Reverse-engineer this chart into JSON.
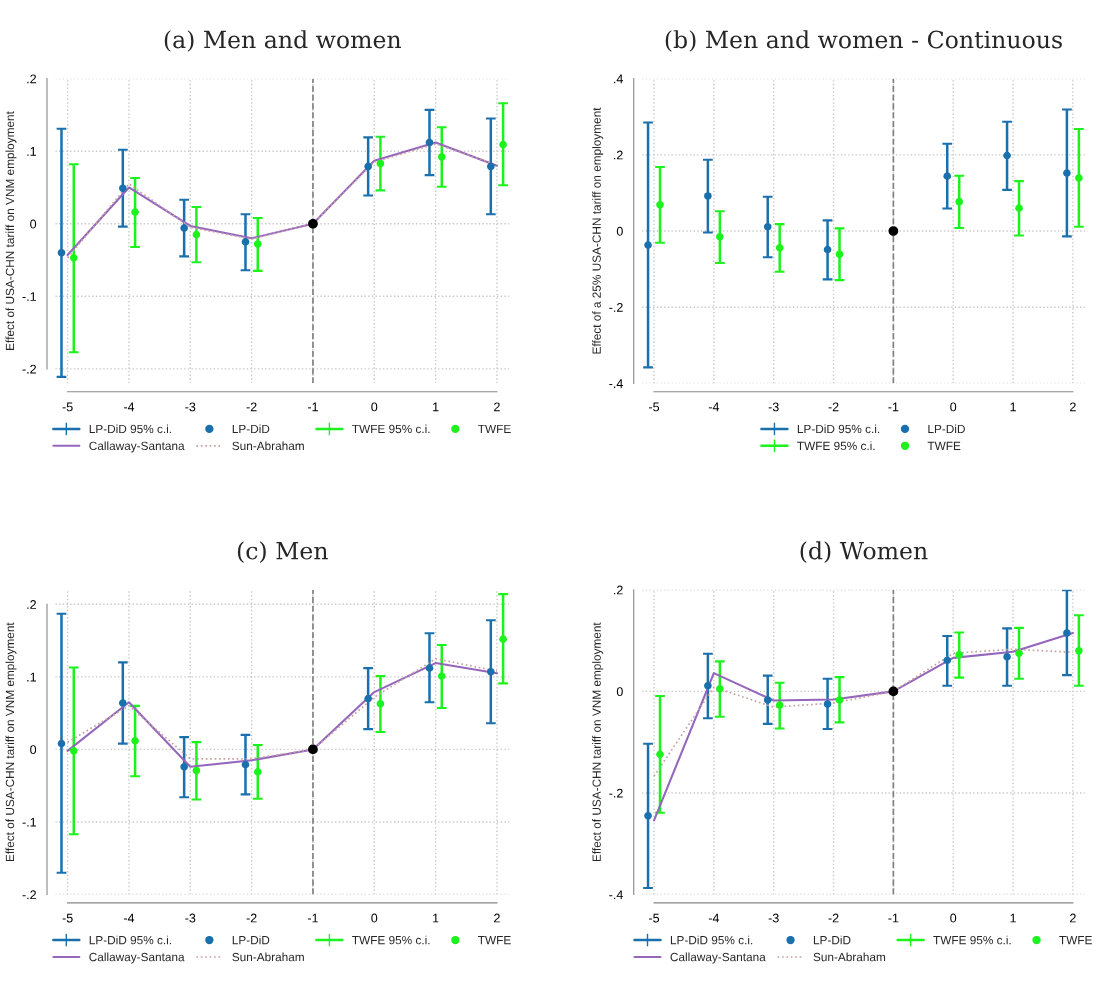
{
  "chart_data": [
    {
      "type": "scatter",
      "title": "(a) Men and women",
      "ylabel": "Effect of USA-CHN tariff on VNM employment",
      "xlim": [
        -5.2,
        2.2
      ],
      "xticks": [
        -5,
        -4,
        -3,
        -2,
        -1,
        0,
        1,
        2
      ],
      "ylim": [
        -0.22,
        0.2
      ],
      "yticks": [
        {
          "value": -0.2,
          "label": "-.2"
        },
        {
          "value": -0.1,
          "label": "-.1"
        },
        0,
        {
          "value": 0.1,
          "label": ".1"
        },
        {
          "value": 0.2,
          "label": ".2"
        }
      ],
      "grid": true,
      "legend": "bottom",
      "ref_lines": [
        {
          "axis": "x",
          "value": -1,
          "color": "#808080",
          "line_style": "dashed"
        }
      ],
      "annotations": [
        "LP-DiD 95% c.i.",
        "TWFE 95% c.i."
      ],
      "series": [
        {
          "name": "LP-DiD",
          "color": "#1a6fad",
          "marker": "circle",
          "x": [
            -5.1,
            -4.1,
            -3.1,
            -2.1,
            -0.1,
            0.9,
            1.9
          ],
          "values": [
            -0.04,
            0.049,
            -0.006,
            -0.025,
            0.079,
            0.112,
            0.079
          ],
          "errors": [
            [
              -0.211,
              0.131
            ],
            [
              -0.004,
              0.102
            ],
            [
              -0.045,
              0.033
            ],
            [
              -0.064,
              0.013
            ],
            [
              0.039,
              0.119
            ],
            [
              0.067,
              0.157
            ],
            [
              0.013,
              0.145
            ]
          ]
        },
        {
          "name": "TWFE",
          "color": "#1cf21c",
          "marker": "circle",
          "x": [
            -4.9,
            -3.9,
            -2.9,
            -1.9,
            0.1,
            1.1,
            2.1
          ],
          "values": [
            -0.047,
            0.016,
            -0.015,
            -0.028,
            0.083,
            0.092,
            0.109
          ],
          "errors": [
            [
              -0.177,
              0.082
            ],
            [
              -0.032,
              0.063
            ],
            [
              -0.053,
              0.023
            ],
            [
              -0.065,
              0.008
            ],
            [
              0.046,
              0.12
            ],
            [
              0.051,
              0.133
            ],
            [
              0.053,
              0.166
            ]
          ]
        },
        {
          "name": "Callaway-Santana",
          "type": "line",
          "color": "#9467bd",
          "line_style": "solid",
          "x": [
            -5,
            -4,
            -3,
            -2,
            -1,
            0,
            1,
            2
          ],
          "values": [
            -0.043,
            0.05,
            -0.003,
            -0.02,
            0,
            0.087,
            0.112,
            0.08
          ]
        },
        {
          "name": "Sun-Abraham",
          "type": "line",
          "color": "#c9a0a0",
          "line_style": "dotted",
          "x": [
            -5,
            -4,
            -3,
            -2,
            -1,
            0,
            1,
            2
          ],
          "values": [
            -0.047,
            0.055,
            -0.005,
            -0.021,
            0,
            0.085,
            0.11,
            0.081
          ]
        },
        {
          "color": "#000000",
          "marker": "circle",
          "x": [
            -1
          ],
          "values": [
            0
          ]
        }
      ]
    },
    {
      "type": "scatter",
      "title": "(b) Men and women - Continuous",
      "ylabel": "Effect of a 25% USA-CHN tariff on employment",
      "xlim": [
        -5.2,
        2.2
      ],
      "xticks": [
        -5,
        -4,
        -3,
        -2,
        -1,
        0,
        1,
        2
      ],
      "ylim": [
        -0.4,
        0.4
      ],
      "yticks": [
        {
          "value": -0.4,
          "label": "-.4"
        },
        {
          "value": -0.2,
          "label": "-.2"
        },
        0,
        {
          "value": 0.2,
          "label": ".2"
        },
        {
          "value": 0.4,
          "label": ".4"
        }
      ],
      "grid": true,
      "legend": "bottom",
      "ref_lines": [
        {
          "axis": "x",
          "value": -1,
          "color": "#808080",
          "line_style": "dashed"
        }
      ],
      "annotations": [
        "LP-DiD 95% c.i.",
        "TWFE 95% c.i."
      ],
      "series": [
        {
          "name": "LP-DiD",
          "color": "#1a6fad",
          "marker": "circle",
          "x": [
            -5.1,
            -4.1,
            -3.1,
            -2.1,
            -0.1,
            0.9,
            1.9
          ],
          "values": [
            -0.037,
            0.092,
            0.011,
            -0.049,
            0.144,
            0.198,
            0.152
          ],
          "errors": [
            [
              -0.358,
              0.285
            ],
            [
              -0.004,
              0.187
            ],
            [
              -0.069,
              0.09
            ],
            [
              -0.127,
              0.028
            ],
            [
              0.059,
              0.229
            ],
            [
              0.108,
              0.287
            ],
            [
              -0.014,
              0.319
            ]
          ]
        },
        {
          "name": "TWFE",
          "color": "#1cf21c",
          "marker": "circle",
          "x": [
            -4.9,
            -3.9,
            -2.9,
            -1.9,
            0.1,
            1.1,
            2.1
          ],
          "values": [
            0.069,
            -0.015,
            -0.044,
            -0.061,
            0.077,
            0.06,
            0.139
          ],
          "errors": [
            [
              -0.031,
              0.168
            ],
            [
              -0.084,
              0.052
            ],
            [
              -0.107,
              0.018
            ],
            [
              -0.129,
              0.007
            ],
            [
              0.008,
              0.145
            ],
            [
              -0.012,
              0.131
            ],
            [
              0.011,
              0.268
            ]
          ]
        },
        {
          "color": "#000000",
          "marker": "circle",
          "x": [
            -1
          ],
          "values": [
            0
          ]
        }
      ]
    },
    {
      "type": "scatter",
      "title": "(c) Men",
      "ylabel": "Effect of USA-CHN tariff on VNM employment",
      "xlim": [
        -5.2,
        2.2
      ],
      "xticks": [
        -5,
        -4,
        -3,
        -2,
        -1,
        0,
        1,
        2
      ],
      "ylim": [
        -0.2,
        0.22
      ],
      "yticks": [
        {
          "value": -0.2,
          "label": "-.2"
        },
        {
          "value": -0.1,
          "label": "-.1"
        },
        0,
        {
          "value": 0.1,
          "label": ".1"
        },
        {
          "value": 0.2,
          "label": ".2"
        }
      ],
      "grid": true,
      "legend": "bottom",
      "ref_lines": [
        {
          "axis": "x",
          "value": -1,
          "color": "#808080",
          "line_style": "dashed"
        }
      ],
      "annotations": [
        "LP-DiD 95% c.i.",
        "TWFE 95% c.i."
      ],
      "series": [
        {
          "name": "LP-DiD",
          "color": "#1a6fad",
          "marker": "circle",
          "x": [
            -5.1,
            -4.1,
            -3.1,
            -2.1,
            -0.1,
            0.9,
            1.9
          ],
          "values": [
            0.008,
            0.064,
            -0.024,
            -0.021,
            0.07,
            0.112,
            0.107
          ],
          "errors": [
            [
              -0.17,
              0.187
            ],
            [
              0.008,
              0.12
            ],
            [
              -0.066,
              0.017
            ],
            [
              -0.062,
              0.02
            ],
            [
              0.028,
              0.112
            ],
            [
              0.065,
              0.16
            ],
            [
              0.036,
              0.178
            ]
          ]
        },
        {
          "name": "TWFE",
          "color": "#1cf21c",
          "marker": "circle",
          "x": [
            -4.9,
            -3.9,
            -2.9,
            -1.9,
            0.1,
            1.1,
            2.1
          ],
          "values": [
            -0.002,
            0.012,
            -0.029,
            -0.031,
            0.063,
            0.101,
            0.152
          ],
          "errors": [
            [
              -0.117,
              0.113
            ],
            [
              -0.037,
              0.06
            ],
            [
              -0.069,
              0.01
            ],
            [
              -0.068,
              0.006
            ],
            [
              0.024,
              0.101
            ],
            [
              0.057,
              0.144
            ],
            [
              0.091,
              0.214
            ]
          ]
        },
        {
          "name": "Callaway-Santana",
          "type": "line",
          "color": "#9467bd",
          "line_style": "solid",
          "x": [
            -5,
            -4,
            -3,
            -2,
            -1,
            0,
            1,
            2
          ],
          "values": [
            -0.002,
            0.065,
            -0.024,
            -0.015,
            0,
            0.079,
            0.119,
            0.105
          ]
        },
        {
          "name": "Sun-Abraham",
          "type": "line",
          "color": "#c9a0a0",
          "line_style": "dotted",
          "x": [
            -5,
            -4,
            -3,
            -2,
            -1,
            0,
            1,
            2
          ],
          "values": [
            0.01,
            0.06,
            -0.013,
            -0.013,
            0,
            0.072,
            0.125,
            0.108
          ]
        },
        {
          "color": "#000000",
          "marker": "circle",
          "x": [
            -1
          ],
          "values": [
            0
          ]
        }
      ]
    },
    {
      "type": "scatter",
      "title": "(d) Women",
      "ylabel": "Effect of USA-CHN tariff on VNM employment",
      "xlim": [
        -5.2,
        2.2
      ],
      "xticks": [
        -5,
        -4,
        -3,
        -2,
        -1,
        0,
        1,
        2
      ],
      "ylim": [
        -0.4,
        0.2
      ],
      "yticks": [
        {
          "value": -0.4,
          "label": "-.4"
        },
        {
          "value": -0.2,
          "label": "-.2"
        },
        0,
        {
          "value": 0.2,
          "label": ".2"
        }
      ],
      "grid": true,
      "legend": "bottom",
      "ref_lines": [
        {
          "axis": "x",
          "value": -1,
          "color": "#808080",
          "line_style": "dashed"
        }
      ],
      "annotations": [
        "LP-DiD 95% c.i.",
        "TWFE 95% c.i."
      ],
      "series": [
        {
          "name": "LP-DiD",
          "color": "#1a6fad",
          "marker": "circle",
          "x": [
            -5.1,
            -4.1,
            -3.1,
            -2.1,
            -0.1,
            0.9,
            1.9
          ],
          "values": [
            -0.245,
            0.011,
            -0.017,
            -0.025,
            0.061,
            0.068,
            0.115
          ],
          "errors": [
            [
              -0.387,
              -0.103
            ],
            [
              -0.053,
              0.074
            ],
            [
              -0.064,
              0.031
            ],
            [
              -0.074,
              0.025
            ],
            [
              0.011,
              0.109
            ],
            [
              0.011,
              0.124
            ],
            [
              0.032,
              0.199
            ]
          ]
        },
        {
          "name": "TWFE",
          "color": "#1cf21c",
          "marker": "circle",
          "x": [
            -4.9,
            -3.9,
            -2.9,
            -1.9,
            0.1,
            1.1,
            2.1
          ],
          "values": [
            -0.124,
            0.005,
            -0.027,
            -0.017,
            0.072,
            0.075,
            0.08
          ],
          "errors": [
            [
              -0.239,
              -0.009
            ],
            [
              -0.05,
              0.059
            ],
            [
              -0.073,
              0.017
            ],
            [
              -0.061,
              0.028
            ],
            [
              0.027,
              0.116
            ],
            [
              0.025,
              0.125
            ],
            [
              0.011,
              0.15
            ]
          ]
        },
        {
          "name": "Callaway-Santana",
          "type": "line",
          "color": "#9467bd",
          "line_style": "solid",
          "x": [
            -5,
            -4,
            -3,
            -2,
            -1,
            0,
            1,
            2
          ],
          "values": [
            -0.254,
            0.036,
            -0.018,
            -0.016,
            0,
            0.066,
            0.078,
            0.115
          ]
        },
        {
          "name": "Sun-Abraham",
          "type": "line",
          "color": "#c9a0a0",
          "line_style": "dotted",
          "x": [
            -5,
            -4,
            -3,
            -2,
            -1,
            0,
            1,
            2
          ],
          "values": [
            -0.167,
            0.008,
            -0.031,
            -0.023,
            0,
            0.075,
            0.083,
            0.077
          ]
        },
        {
          "color": "#000000",
          "marker": "circle",
          "x": [
            -1
          ],
          "values": [
            0
          ]
        }
      ]
    }
  ]
}
